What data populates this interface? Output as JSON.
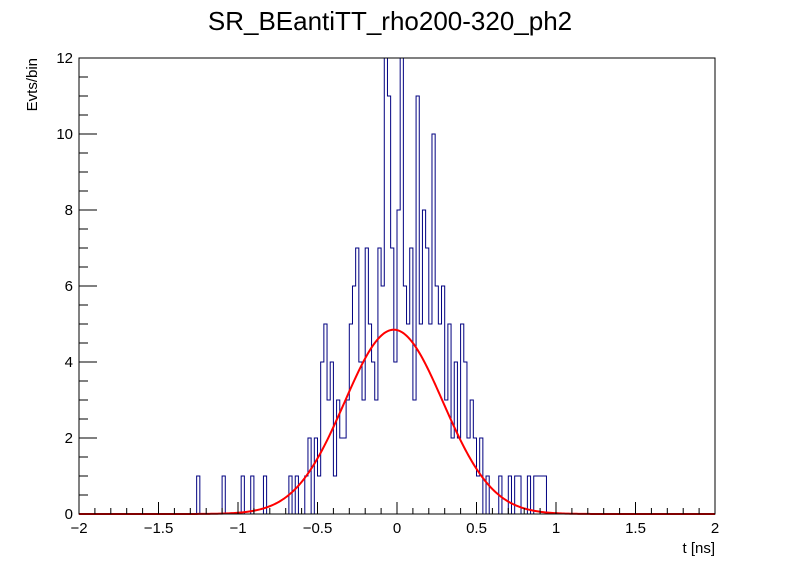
{
  "chart_data": {
    "type": "line",
    "title": "SR_BEantiTT_rho200-320_ph2",
    "xlabel": "t [ns]",
    "ylabel": "Evts/bin",
    "xlim": [
      -2,
      2
    ],
    "ylim": [
      0,
      12
    ],
    "x_ticks": [
      -2,
      -1.5,
      -1,
      -0.5,
      0,
      0.5,
      1,
      1.5,
      2
    ],
    "x_tick_labels": [
      "−2",
      "−1.5",
      "−1",
      "−0.5",
      "0",
      "0.5",
      "1",
      "1.5",
      "2"
    ],
    "y_ticks": [
      0,
      2,
      4,
      6,
      8,
      10,
      12
    ],
    "y_tick_labels": [
      "0",
      "2",
      "4",
      "6",
      "8",
      "10",
      "12"
    ],
    "grid": false,
    "legend": "none",
    "colors": {
      "histogram": "#000080",
      "fit": "#ff0000",
      "axes": "#000000"
    },
    "series": [
      {
        "kind": "histogram",
        "bin_width": 0.02,
        "bins": [
          {
            "x": -1.26,
            "y": 1
          },
          {
            "x": -1.1,
            "y": 1
          },
          {
            "x": -0.98,
            "y": 1
          },
          {
            "x": -0.92,
            "y": 1
          },
          {
            "x": -0.84,
            "y": 1
          },
          {
            "x": -0.68,
            "y": 1
          },
          {
            "x": -0.64,
            "y": 1
          },
          {
            "x": -0.58,
            "y": 1
          },
          {
            "x": -0.56,
            "y": 2
          },
          {
            "x": -0.52,
            "y": 2
          },
          {
            "x": -0.5,
            "y": 1
          },
          {
            "x": -0.48,
            "y": 4
          },
          {
            "x": -0.46,
            "y": 5
          },
          {
            "x": -0.44,
            "y": 3
          },
          {
            "x": -0.42,
            "y": 4
          },
          {
            "x": -0.4,
            "y": 1
          },
          {
            "x": -0.38,
            "y": 3
          },
          {
            "x": -0.36,
            "y": 2
          },
          {
            "x": -0.34,
            "y": 2
          },
          {
            "x": -0.32,
            "y": 3
          },
          {
            "x": -0.3,
            "y": 5
          },
          {
            "x": -0.28,
            "y": 6
          },
          {
            "x": -0.26,
            "y": 7
          },
          {
            "x": -0.24,
            "y": 4
          },
          {
            "x": -0.22,
            "y": 3
          },
          {
            "x": -0.2,
            "y": 7
          },
          {
            "x": -0.18,
            "y": 5
          },
          {
            "x": -0.16,
            "y": 4
          },
          {
            "x": -0.14,
            "y": 3
          },
          {
            "x": -0.12,
            "y": 7
          },
          {
            "x": -0.1,
            "y": 6
          },
          {
            "x": -0.08,
            "y": 12
          },
          {
            "x": -0.06,
            "y": 11
          },
          {
            "x": -0.04,
            "y": 7
          },
          {
            "x": -0.02,
            "y": 4
          },
          {
            "x": 0.0,
            "y": 8
          },
          {
            "x": 0.02,
            "y": 12
          },
          {
            "x": 0.04,
            "y": 6
          },
          {
            "x": 0.06,
            "y": 5
          },
          {
            "x": 0.08,
            "y": 7
          },
          {
            "x": 0.1,
            "y": 3
          },
          {
            "x": 0.12,
            "y": 11
          },
          {
            "x": 0.14,
            "y": 5
          },
          {
            "x": 0.16,
            "y": 8
          },
          {
            "x": 0.18,
            "y": 7
          },
          {
            "x": 0.2,
            "y": 5
          },
          {
            "x": 0.22,
            "y": 10
          },
          {
            "x": 0.24,
            "y": 6
          },
          {
            "x": 0.26,
            "y": 5
          },
          {
            "x": 0.28,
            "y": 6
          },
          {
            "x": 0.3,
            "y": 3
          },
          {
            "x": 0.32,
            "y": 5
          },
          {
            "x": 0.34,
            "y": 2
          },
          {
            "x": 0.36,
            "y": 4
          },
          {
            "x": 0.38,
            "y": 2
          },
          {
            "x": 0.4,
            "y": 5
          },
          {
            "x": 0.42,
            "y": 4
          },
          {
            "x": 0.44,
            "y": 2
          },
          {
            "x": 0.46,
            "y": 3
          },
          {
            "x": 0.48,
            "y": 2
          },
          {
            "x": 0.5,
            "y": 1
          },
          {
            "x": 0.52,
            "y": 2
          },
          {
            "x": 0.56,
            "y": 1
          },
          {
            "x": 0.64,
            "y": 1
          },
          {
            "x": 0.7,
            "y": 1
          },
          {
            "x": 0.74,
            "y": 1
          },
          {
            "x": 0.76,
            "y": 1
          },
          {
            "x": 0.82,
            "y": 1
          },
          {
            "x": 0.86,
            "y": 1
          },
          {
            "x": 0.88,
            "y": 1
          },
          {
            "x": 0.9,
            "y": 1
          },
          {
            "x": 0.92,
            "y": 1
          }
        ]
      },
      {
        "kind": "gaussian-fit",
        "amplitude": 4.85,
        "mean": -0.02,
        "sigma": 0.31
      }
    ]
  }
}
